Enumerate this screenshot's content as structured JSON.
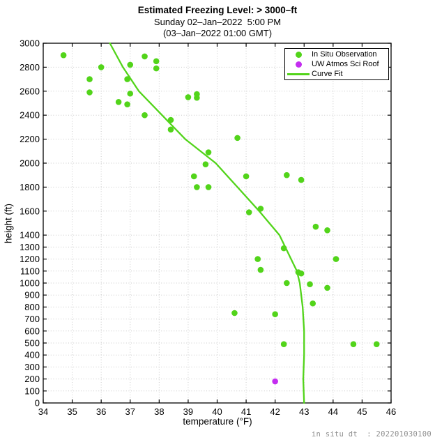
{
  "chart_data": {
    "type": "scatter",
    "title": "Estimated Freezing Level: > 3000–ft",
    "subtitle": "Sunday 02–Jan–2022  5:00 PM",
    "subtitle2": "(03–Jan–2022 01:00 GMT)",
    "xlabel": "temperature (°F)",
    "ylabel": "height (ft)",
    "xlim": [
      34,
      46
    ],
    "ylim": [
      0,
      3000
    ],
    "xticks": [
      34,
      35,
      36,
      37,
      38,
      39,
      40,
      41,
      42,
      43,
      44,
      45,
      46
    ],
    "yticks": [
      0,
      100,
      200,
      300,
      400,
      500,
      600,
      700,
      800,
      900,
      1000,
      1100,
      1200,
      1300,
      1400,
      1600,
      1800,
      2000,
      2200,
      2400,
      2600,
      2800,
      3000
    ],
    "grid": true,
    "legend_position": "top-right",
    "series": [
      {
        "name": "In Situ Observation",
        "type": "scatter",
        "marker": "dot",
        "color": "#52d41a",
        "points": [
          [
            34.7,
            2900
          ],
          [
            36.0,
            2800
          ],
          [
            35.6,
            2700
          ],
          [
            35.6,
            2590
          ],
          [
            37.0,
            2820
          ],
          [
            37.5,
            2890
          ],
          [
            37.9,
            2850
          ],
          [
            37.9,
            2790
          ],
          [
            36.9,
            2700
          ],
          [
            37.0,
            2580
          ],
          [
            36.6,
            2510
          ],
          [
            36.9,
            2490
          ],
          [
            37.5,
            2400
          ],
          [
            38.4,
            2360
          ],
          [
            38.4,
            2280
          ],
          [
            39.0,
            2550
          ],
          [
            39.3,
            2575
          ],
          [
            39.3,
            2545
          ],
          [
            39.7,
            2090
          ],
          [
            39.6,
            1990
          ],
          [
            39.2,
            1890
          ],
          [
            39.3,
            1800
          ],
          [
            39.7,
            1800
          ],
          [
            40.7,
            2210
          ],
          [
            41.0,
            1890
          ],
          [
            42.4,
            1900
          ],
          [
            42.9,
            1860
          ],
          [
            41.1,
            1590
          ],
          [
            41.5,
            1620
          ],
          [
            43.4,
            1470
          ],
          [
            43.8,
            1440
          ],
          [
            42.3,
            1290
          ],
          [
            41.4,
            1200
          ],
          [
            44.1,
            1200
          ],
          [
            41.5,
            1110
          ],
          [
            42.8,
            1090
          ],
          [
            42.9,
            1080
          ],
          [
            42.4,
            1000
          ],
          [
            43.2,
            990
          ],
          [
            43.8,
            960
          ],
          [
            43.3,
            830
          ],
          [
            40.6,
            750
          ],
          [
            42.0,
            740
          ],
          [
            42.3,
            490
          ],
          [
            44.7,
            490
          ],
          [
            45.5,
            490
          ]
        ]
      },
      {
        "name": "UW Atmos Sci Roof",
        "type": "scatter",
        "marker": "dot",
        "color": "#c42df0",
        "points": [
          [
            42.0,
            180
          ]
        ]
      },
      {
        "name": "Curve Fit",
        "type": "line",
        "color": "#52d41a",
        "points": [
          [
            36.3,
            3000
          ],
          [
            36.75,
            2800
          ],
          [
            37.3,
            2600
          ],
          [
            38.1,
            2400
          ],
          [
            38.9,
            2200
          ],
          [
            39.95,
            2000
          ],
          [
            40.7,
            1800
          ],
          [
            41.45,
            1600
          ],
          [
            42.15,
            1400
          ],
          [
            42.55,
            1200
          ],
          [
            42.75,
            1100
          ],
          [
            42.85,
            1000
          ],
          [
            42.95,
            800
          ],
          [
            43.0,
            600
          ],
          [
            43.0,
            400
          ],
          [
            42.97,
            200
          ],
          [
            43.0,
            0
          ]
        ]
      }
    ]
  },
  "footer": {
    "text": "in situ dt  : 202201030100"
  },
  "colors": {
    "background": "#ffffff",
    "axis": "#000000",
    "grid": "#c9c9c9",
    "in_situ_green": "#52d41a",
    "uw_roof_purple": "#c42df0",
    "footer_text": "#8f8f8f"
  }
}
